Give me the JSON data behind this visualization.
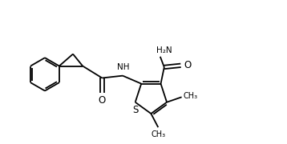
{
  "bg_color": "#ffffff",
  "line_color": "#000000",
  "line_width": 1.3,
  "font_size": 7.5,
  "figsize": [
    3.58,
    1.8
  ],
  "dpi": 100,
  "xlim": [
    0,
    10
  ],
  "ylim": [
    0,
    5
  ]
}
